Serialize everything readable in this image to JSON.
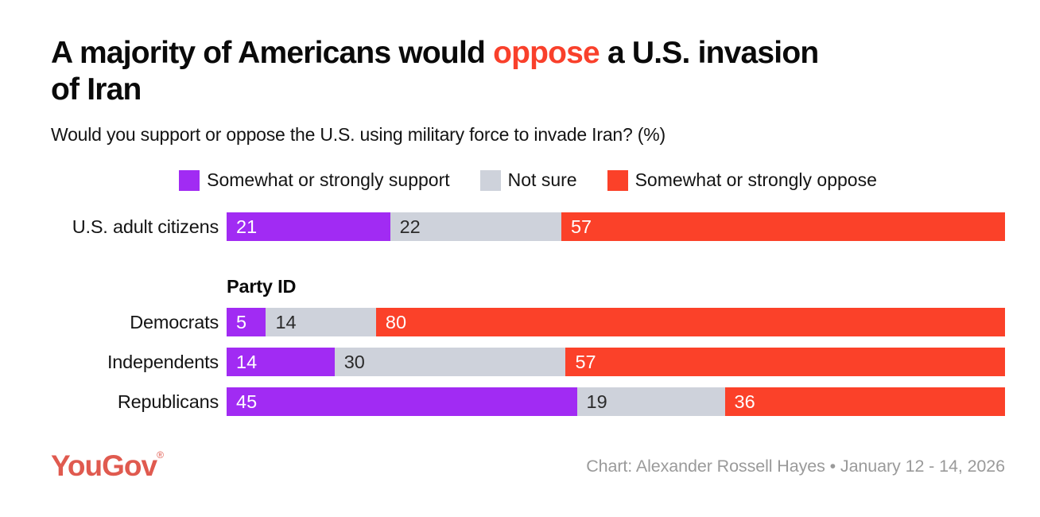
{
  "title": {
    "line1_pre": "A majority of Americans would ",
    "line1_highlight": "oppose",
    "line1_post": " a U.S. invasion",
    "line2": "of Iran"
  },
  "subtitle": "Would you support or oppose the U.S. using military force to invade Iran? (%)",
  "legend": [
    {
      "label": "Somewhat or strongly support",
      "color": "#a12bf3"
    },
    {
      "label": "Not sure",
      "color": "#ced2db"
    },
    {
      "label": "Somewhat or strongly oppose",
      "color": "#fb4129"
    }
  ],
  "colors": {
    "series": [
      "#a12bf3",
      "#ced2db",
      "#fb4129"
    ],
    "title_highlight": "#f9402b",
    "logo": "#e05a4f",
    "credit": "#9a9a9a"
  },
  "group_heading": "Party ID",
  "chart_data": {
    "type": "bar",
    "stacked": true,
    "orientation": "horizontal",
    "title": "A majority of Americans would oppose a U.S. invasion of Iran",
    "subtitle": "Would you support or oppose the U.S. using military force to invade Iran? (%)",
    "series_names": [
      "Somewhat or strongly support",
      "Not sure",
      "Somewhat or strongly oppose"
    ],
    "xlim": [
      0,
      100
    ],
    "legend_position": "top-center",
    "grid": false,
    "rows": [
      {
        "label": "U.S. adult citizens",
        "group": null,
        "values": [
          21,
          22,
          57
        ]
      },
      {
        "label": "Democrats",
        "group": "Party ID",
        "values": [
          5,
          14,
          80
        ]
      },
      {
        "label": "Independents",
        "group": "Party ID",
        "values": [
          14,
          30,
          57
        ]
      },
      {
        "label": "Republicans",
        "group": "Party ID",
        "values": [
          45,
          19,
          36
        ]
      }
    ]
  },
  "footer": {
    "logo": "YouGov",
    "registered": "®",
    "credit": "Chart: Alexander Rossell Hayes • January 12 - 14, 2026"
  }
}
